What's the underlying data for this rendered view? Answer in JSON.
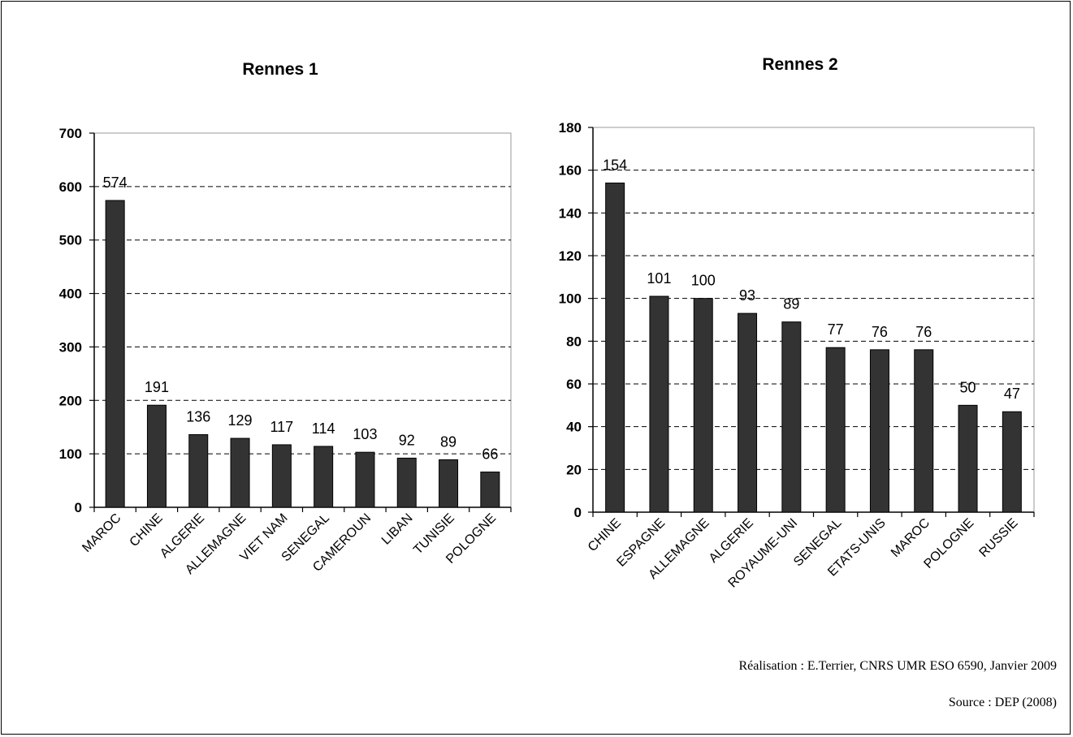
{
  "chart_data": [
    {
      "type": "bar",
      "title": "Rennes 1",
      "categories": [
        "MAROC",
        "CHINE",
        "ALGERIE",
        "ALLEMAGNE",
        "VIET NAM",
        "SENEGAL",
        "CAMEROUN",
        "LIBAN",
        "TUNISIE",
        "POLOGNE"
      ],
      "values": [
        574,
        191,
        136,
        129,
        117,
        114,
        103,
        92,
        89,
        66
      ],
      "ylim": [
        0,
        700
      ],
      "yticks": [
        0,
        100,
        200,
        300,
        400,
        500,
        600,
        700
      ],
      "grid": "dashed-horizontal",
      "bar_color": "#333333"
    },
    {
      "type": "bar",
      "title": "Rennes 2",
      "categories": [
        "CHINE",
        "ESPAGNE",
        "ALLEMAGNE",
        "ALGERIE",
        "ROYAUME-UNI",
        "SENEGAL",
        "ETATS-UNIS",
        "MAROC",
        "POLOGNE",
        "RUSSIE"
      ],
      "values": [
        154,
        101,
        100,
        93,
        89,
        77,
        76,
        76,
        50,
        47
      ],
      "ylim": [
        0,
        180
      ],
      "yticks": [
        0,
        20,
        40,
        60,
        80,
        100,
        120,
        140,
        160,
        180
      ],
      "grid": "dashed-horizontal",
      "bar_color": "#333333"
    }
  ],
  "credits": {
    "realisation": "Réalisation : E.Terrier, CNRS UMR ESO 6590, Janvier 2009",
    "source": "Source : DEP (2008)"
  }
}
